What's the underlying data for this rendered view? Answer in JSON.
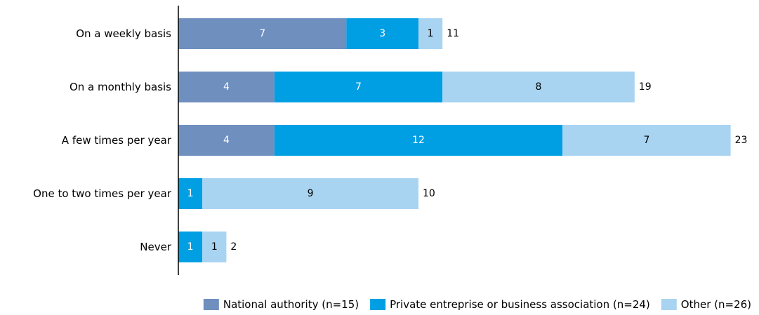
{
  "chart_data": {
    "type": "bar",
    "orientation": "horizontal",
    "stacked": true,
    "title": "",
    "xlabel": "",
    "ylabel": "",
    "grid": false,
    "legend_position": "bottom",
    "categories": [
      "On a weekly basis",
      "On a monthly basis",
      "A few times per year",
      "One to two times per year",
      "Never"
    ],
    "series": [
      {
        "name": "National authority (n=15)",
        "color": "#6F8FBF",
        "label_color": "#ffffff",
        "values": [
          7,
          4,
          4,
          0,
          0
        ]
      },
      {
        "name": "Private entreprise or business association  (n=24)",
        "color": "#009FE3",
        "label_color": "#ffffff",
        "values": [
          3,
          7,
          12,
          1,
          1
        ]
      },
      {
        "name": "Other (n=26)",
        "color": "#A8D4F2",
        "label_color": "#000000",
        "values": [
          1,
          8,
          7,
          9,
          1
        ]
      }
    ],
    "totals": [
      11,
      19,
      23,
      10,
      2
    ]
  }
}
